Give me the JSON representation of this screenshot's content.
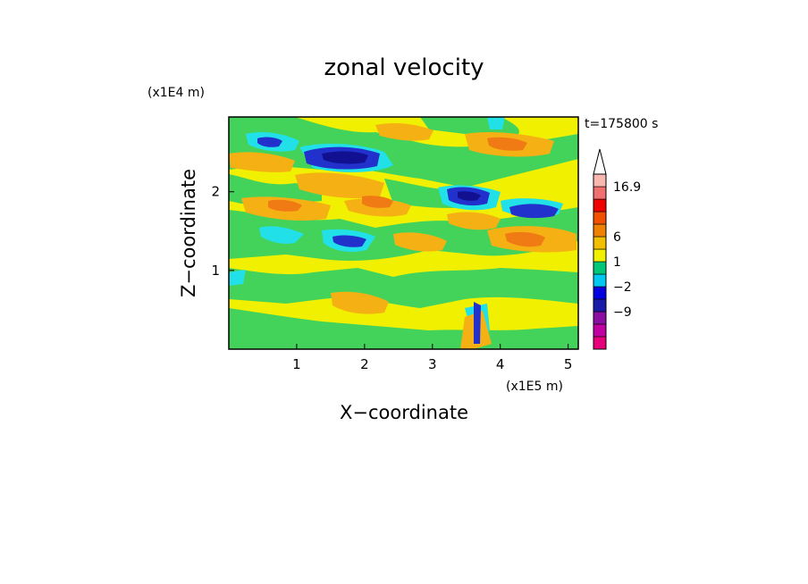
{
  "chart_data": {
    "type": "heatmap",
    "title": "zonal velocity",
    "xlabel": "X−coordinate",
    "ylabel": "Z−coordinate",
    "x_unit": "(x1E5 m)",
    "y_unit": "(x1E4 m)",
    "time_label": "t=175800 s",
    "xlim": [
      0,
      5.15
    ],
    "ylim": [
      0,
      2.95
    ],
    "x_ticks": [
      "1",
      "2",
      "3",
      "4",
      "5"
    ],
    "y_ticks": [
      "1",
      "2"
    ],
    "colorbar": {
      "labels": [
        "16.9",
        "6",
        "1",
        "−2",
        "−9"
      ],
      "colors": [
        "#e8007a",
        "#c000a0",
        "#8a0fa0",
        "#1a1aa8",
        "#0000e0",
        "#00c8f0",
        "#00c878",
        "#f0f000",
        "#f0c000",
        "#f08000",
        "#f05000",
        "#f00000",
        "#f07070",
        "#f8b8b0"
      ]
    },
    "fields": {
      "background": "#f0f000",
      "green": "#44d35a",
      "cyan": "#22e0e8",
      "orange": "#f5b014",
      "dark_orange": "#f07a14",
      "blue": "#2230cc",
      "navy": "#101090"
    }
  }
}
